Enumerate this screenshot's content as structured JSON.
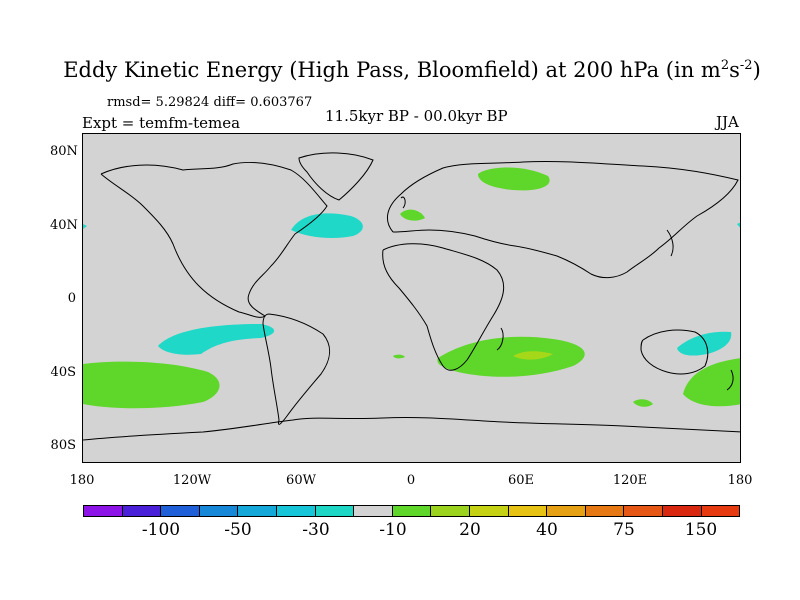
{
  "title": {
    "main": "Eddy Kinetic Energy (High Pass, Bloomfield) at 200 hPa (in m",
    "sup1": "2",
    "mid": "s",
    "sup2": "-2",
    "close": ")"
  },
  "stats": "rmsd= 5.29824 diff= 0.603767",
  "expt": "Expt = temfm-temea",
  "period": "11.5kyr BP - 00.0kyr BP",
  "season": "JJA",
  "map": {
    "lat_labels": [
      "80N",
      "40N",
      "0",
      "40S",
      "80S"
    ],
    "lon_labels": [
      "180",
      "120W",
      "60W",
      "0",
      "60E",
      "120E",
      "180"
    ],
    "background_color": "#d3d3d3",
    "anomaly_colors": {
      "negative_light": "#1fd8c8",
      "positive_light": "#5ed62a",
      "positive_mid": "#a6d81a"
    }
  },
  "colorbar": {
    "colors": [
      "#8c14e6",
      "#4a20d8",
      "#1f5fd8",
      "#1787d8",
      "#14a8d8",
      "#16c5d8",
      "#1ed6c4",
      "#d3d3d3",
      "#5ed62a",
      "#9ad21e",
      "#c5d214",
      "#e6c214",
      "#e6a014",
      "#e67814",
      "#e65614",
      "#d82810",
      "#e63a10"
    ],
    "labels": [
      "-100",
      "-50",
      "-30",
      "-10",
      "20",
      "40",
      "75",
      "150"
    ]
  }
}
